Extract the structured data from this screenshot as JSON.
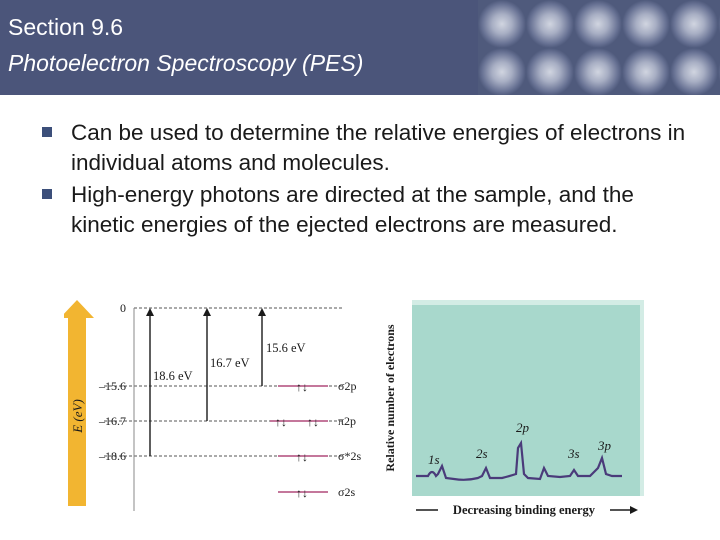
{
  "header": {
    "title": "Section 9.6",
    "subtitle": "Photoelectron Spectroscopy (PES)"
  },
  "bullets": [
    "Can be used to determine the relative energies of electrons in individual atoms and molecules.",
    "High-energy photons are directed at the sample, and the kinetic energies of the ejected electrons are measured."
  ],
  "energy_diagram": {
    "axis_label": "E (eV)",
    "levels": [
      "0",
      "–15.6",
      "–16.7",
      "–18.6"
    ],
    "transitions": [
      "18.6 eV",
      "16.7 eV",
      "15.6 eV"
    ],
    "orbitals": [
      "σ2p",
      "π2p",
      "σ*2s",
      "σ2s"
    ]
  },
  "spectrum": {
    "ylabel": "Relative number of electrons",
    "xlabel": "Decreasing binding energy",
    "peaks": [
      "1s",
      "2s",
      "2p",
      "3s",
      "3p"
    ],
    "colors": {
      "panel": "#a8d8cc",
      "trace": "#4a3b7a"
    }
  }
}
